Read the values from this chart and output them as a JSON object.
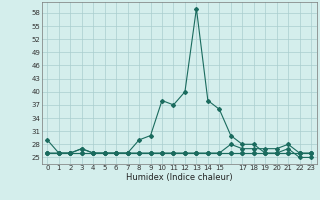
{
  "title": "",
  "xlabel": "Humidex (Indice chaleur)",
  "x": [
    0,
    1,
    2,
    3,
    4,
    5,
    6,
    7,
    8,
    9,
    10,
    11,
    12,
    13,
    14,
    15,
    16,
    17,
    18,
    19,
    20,
    21,
    22,
    23
  ],
  "main_y": [
    29,
    26,
    26,
    27,
    26,
    26,
    26,
    26,
    29,
    30,
    38,
    37,
    40,
    59,
    38,
    36,
    30,
    28,
    28,
    26,
    26,
    27,
    25,
    25
  ],
  "flat1": [
    26,
    26,
    26,
    26,
    26,
    26,
    26,
    26,
    26,
    26,
    26,
    26,
    26,
    26,
    26,
    26,
    26,
    26,
    26,
    26,
    26,
    26,
    26,
    26
  ],
  "flat2": [
    26,
    26,
    26,
    26,
    26,
    26,
    26,
    26,
    26,
    26,
    26,
    26,
    26,
    26,
    26,
    26,
    26,
    26,
    26,
    26,
    26,
    26,
    26,
    26
  ],
  "flat3": [
    26,
    26,
    26,
    27,
    26,
    26,
    26,
    26,
    26,
    26,
    26,
    26,
    26,
    26,
    26,
    26,
    28,
    27,
    27,
    27,
    27,
    28,
    26,
    26
  ],
  "line_color": "#1a6b5e",
  "bg_color": "#d4eeec",
  "grid_color": "#aacece",
  "yticks": [
    25,
    28,
    31,
    34,
    37,
    40,
    43,
    46,
    49,
    52,
    55,
    58
  ],
  "ylim": [
    23.5,
    60.5
  ],
  "xlim": [
    -0.5,
    23.5
  ],
  "xtick_labels": [
    "0",
    "1",
    "2",
    "3",
    "4",
    "5",
    "6",
    "7",
    "8",
    "9",
    "10",
    "11",
    "12",
    "13",
    "14",
    "15",
    "",
    "17",
    "18",
    "19",
    "20",
    "21",
    "22",
    "23"
  ]
}
